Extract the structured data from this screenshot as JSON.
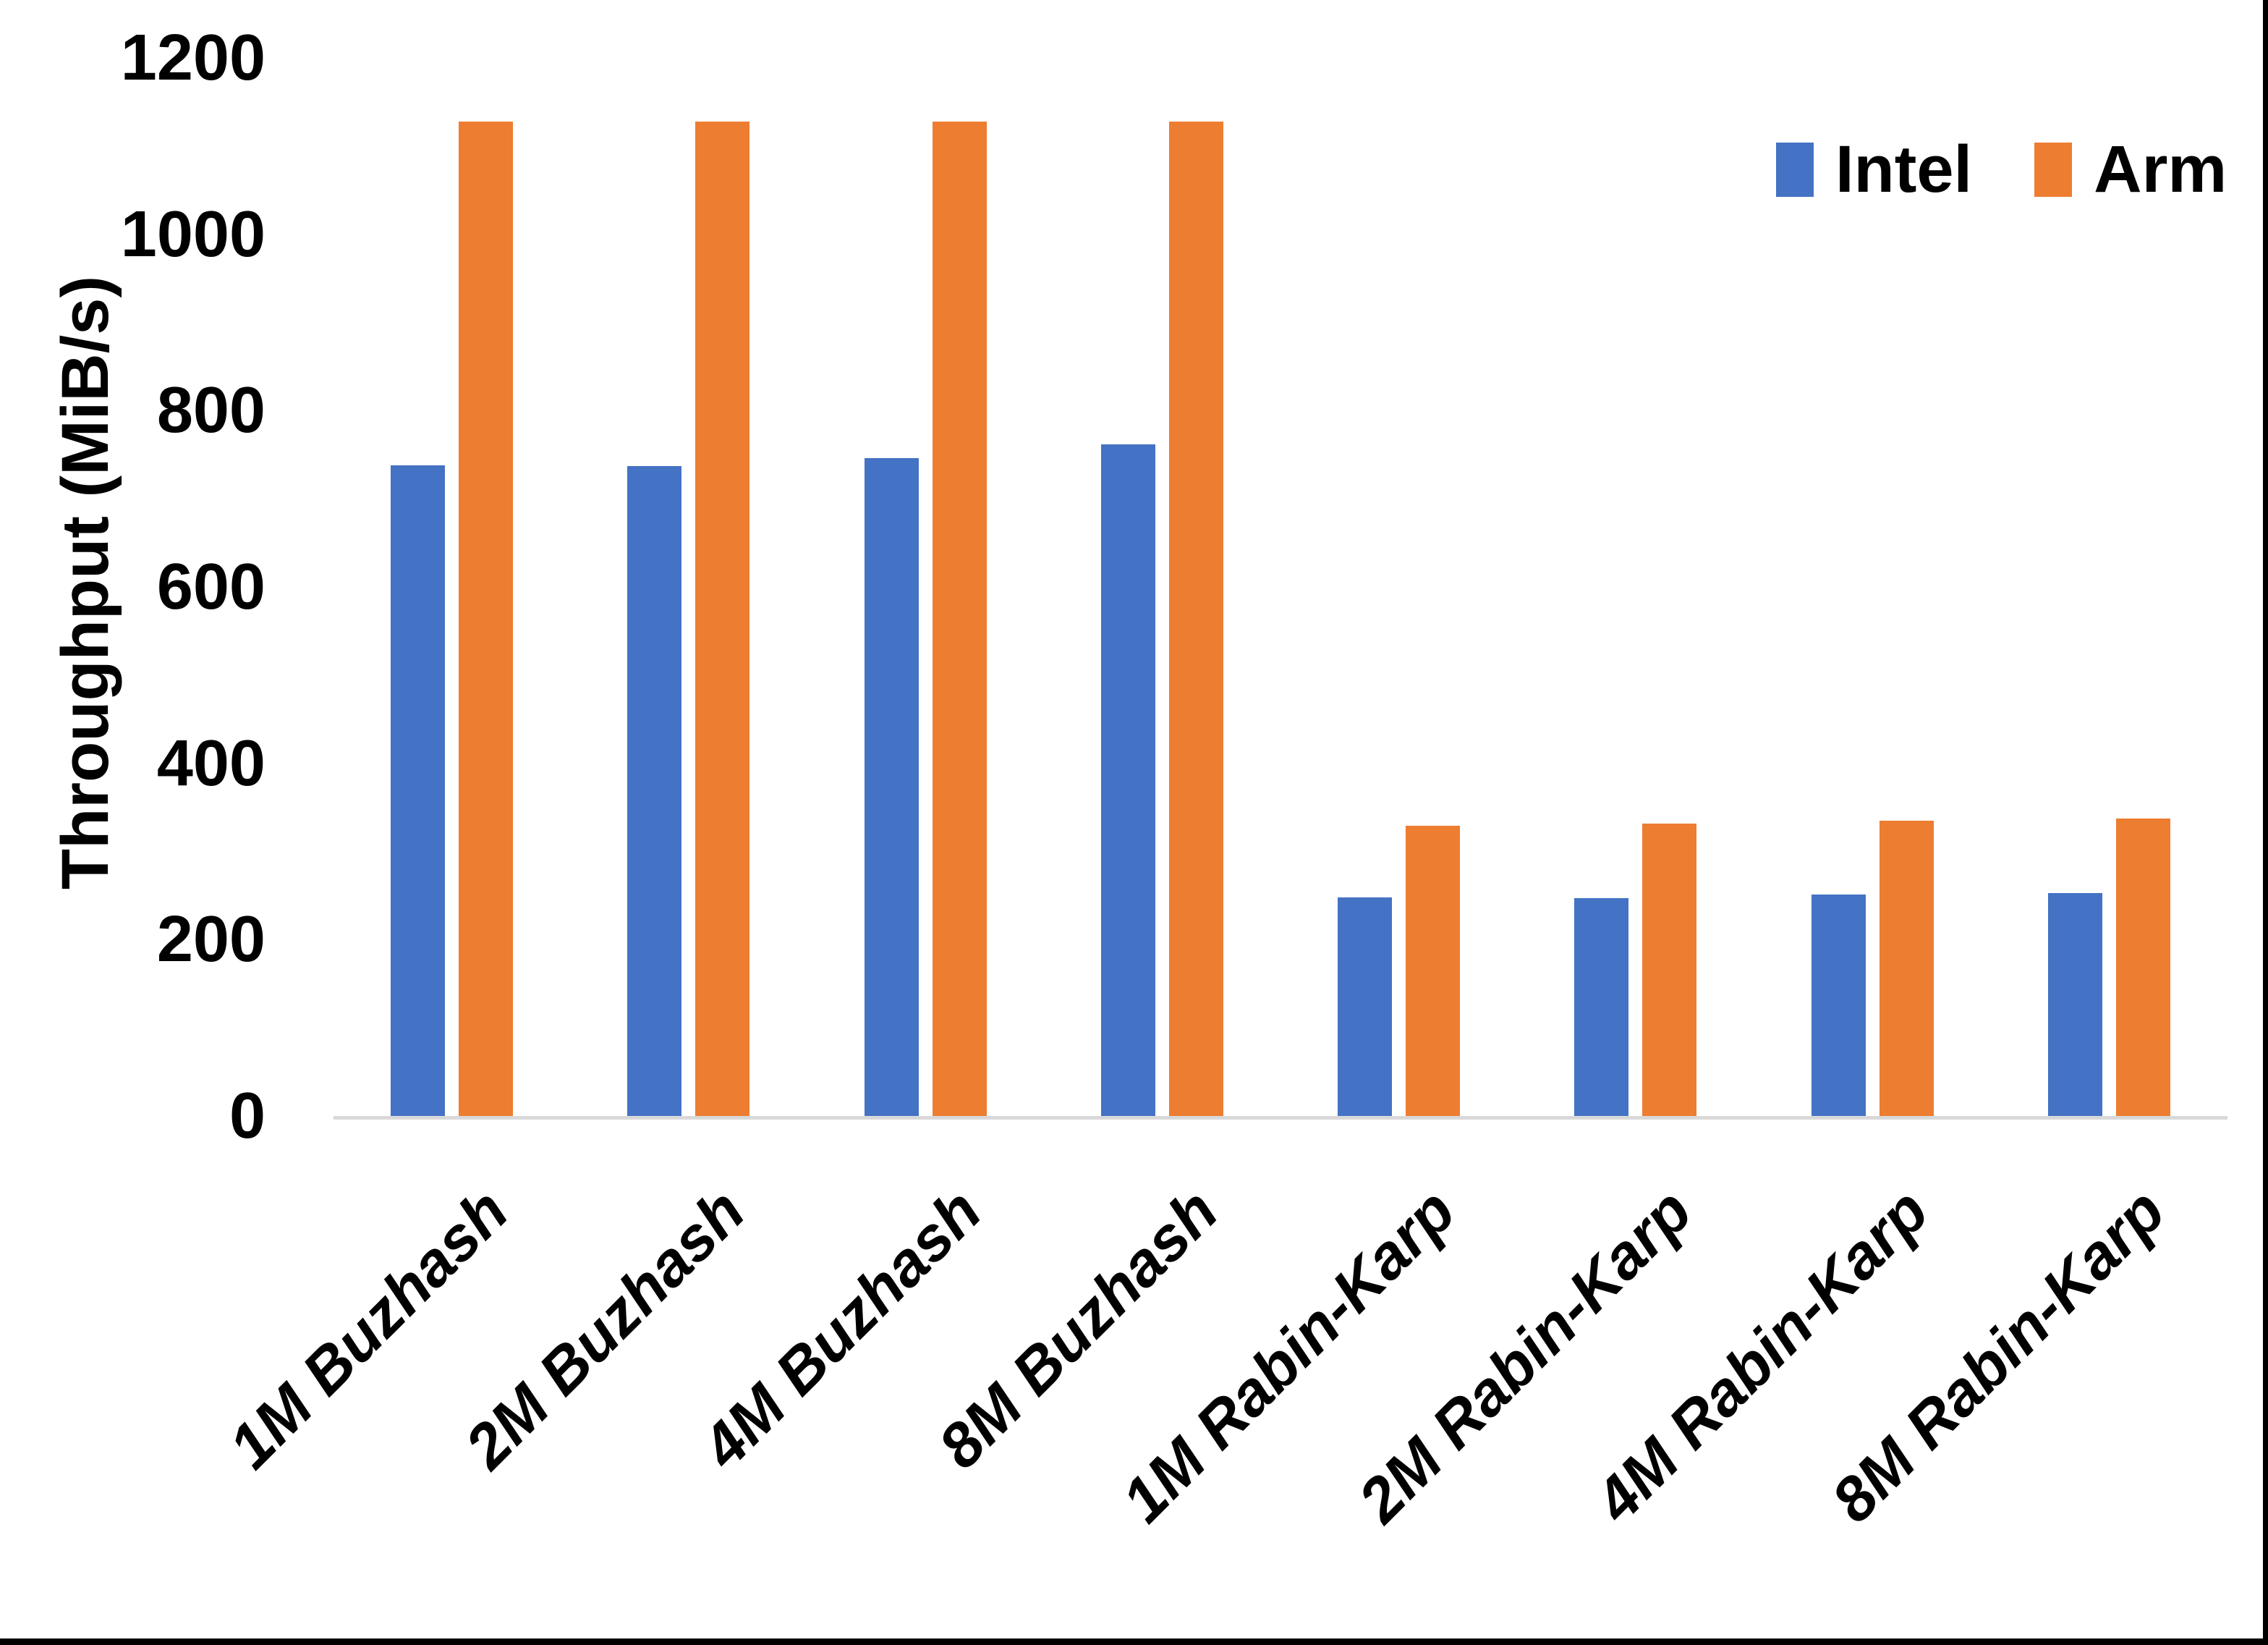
{
  "chart_data": {
    "type": "bar",
    "title": "",
    "xlabel": "",
    "ylabel": "Throughput (MiB/s)",
    "ylim": [
      0,
      1200
    ],
    "yticks": [
      0,
      200,
      400,
      600,
      800,
      1000,
      1200
    ],
    "grid": false,
    "legend_position": "top-right",
    "categories": [
      "1M Buzhash",
      "2M Buzhash",
      "4M Buzhash",
      "8M Buzhash",
      "1M Rabin-Karp",
      "2M Rabin-Karp",
      "4M Rabin-Karp",
      "8M Rabin-Karp"
    ],
    "series": [
      {
        "name": "Intel",
        "color": "#4472C4",
        "values": [
          738,
          737,
          746,
          762,
          248,
          247,
          251,
          253
        ]
      },
      {
        "name": "Arm",
        "color": "#ED7D31",
        "values": [
          1128,
          1128,
          1128,
          1128,
          329,
          332,
          335,
          337
        ]
      }
    ],
    "axis_line_color": "#D9D9D9",
    "text_color": "#000000",
    "border_color": "#000000"
  }
}
